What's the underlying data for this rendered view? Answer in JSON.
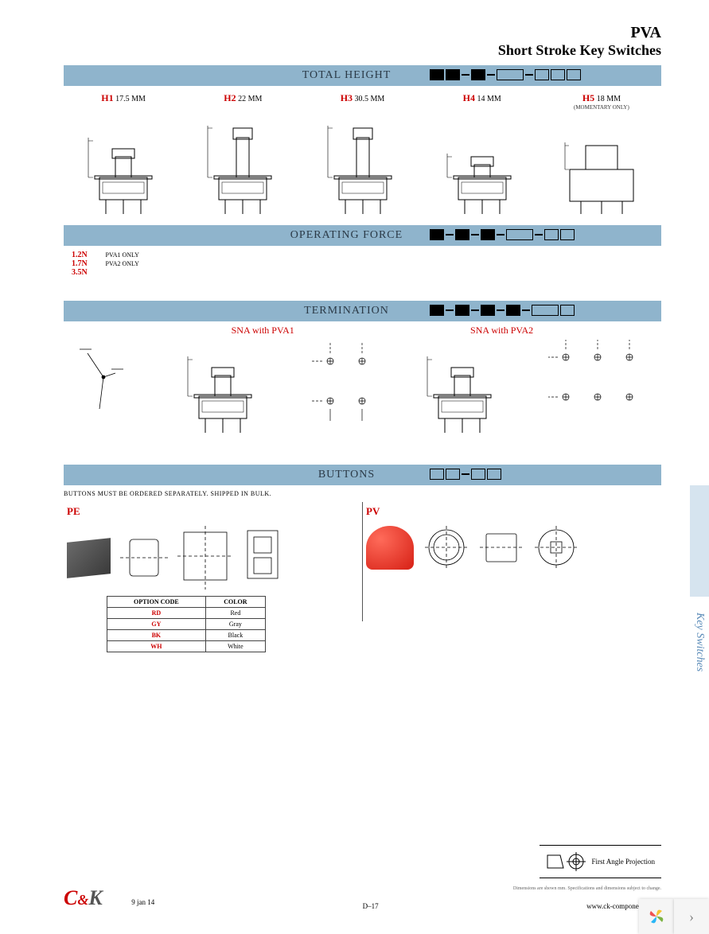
{
  "header": {
    "series": "PVA",
    "subtitle": "Short Stroke Key Switches"
  },
  "sections": {
    "total_height": {
      "title": "TOTAL HEIGHT",
      "code_pattern": [
        "filled",
        "filled",
        "dash",
        "filled",
        "dash",
        "wide",
        "dash",
        "open",
        "open",
        "open"
      ],
      "options": [
        {
          "code": "H1",
          "label": "17.5 MM",
          "note": ""
        },
        {
          "code": "H2",
          "label": "22 MM",
          "note": ""
        },
        {
          "code": "H3",
          "label": "30.5 MM",
          "note": ""
        },
        {
          "code": "H4",
          "label": "14 MM",
          "note": ""
        },
        {
          "code": "H5",
          "label": "18 MM",
          "note": "(MOMENTARY ONLY)"
        }
      ]
    },
    "operating_force": {
      "title": "OPERATING FORCE",
      "code_pattern": [
        "filled",
        "dash",
        "filled",
        "dash",
        "filled",
        "dash",
        "wide",
        "dash",
        "open",
        "open"
      ],
      "options": [
        {
          "code": "1.2N",
          "note": "PVA1 ONLY"
        },
        {
          "code": "1.7N",
          "note": "PVA2 ONLY"
        },
        {
          "code": "3.5N",
          "note": ""
        }
      ]
    },
    "termination": {
      "title": "TERMINATION",
      "code_pattern": [
        "filled",
        "dash",
        "filled",
        "dash",
        "filled",
        "dash",
        "filled",
        "dash",
        "wide",
        "open"
      ],
      "labels": {
        "sna1": "SNA with PVA1",
        "sna2": "SNA with PVA2"
      }
    },
    "buttons": {
      "title": "BUTTONS",
      "code_pattern": [
        "open",
        "open",
        "dash",
        "open",
        "open"
      ],
      "note": "BUTTONS MUST BE ORDERED SEPARATELY. SHIPPED IN BULK.",
      "pe": {
        "code": "PE"
      },
      "pv": {
        "code": "PV"
      },
      "color_table": {
        "headers": [
          "OPTION CODE",
          "COLOR"
        ],
        "rows": [
          {
            "code": "RD",
            "color": "Red"
          },
          {
            "code": "GY",
            "color": "Gray"
          },
          {
            "code": "BK",
            "color": "Black"
          },
          {
            "code": "WH",
            "color": "White"
          }
        ]
      }
    }
  },
  "projection": {
    "label": "First Angle Projection",
    "disclaimer": "Dimensions are shown mm. Specifications and dimensions subject to change."
  },
  "side_tab": "Key Switches",
  "footer": {
    "logo_c": "C",
    "logo_amp": "&",
    "logo_k": "K",
    "date": "9 jan 14",
    "page": "D–17",
    "url": "www.ck-components.com"
  },
  "colors": {
    "bar": "#8fb4cc",
    "accent": "#c00000",
    "side": "#d6e4ef"
  }
}
